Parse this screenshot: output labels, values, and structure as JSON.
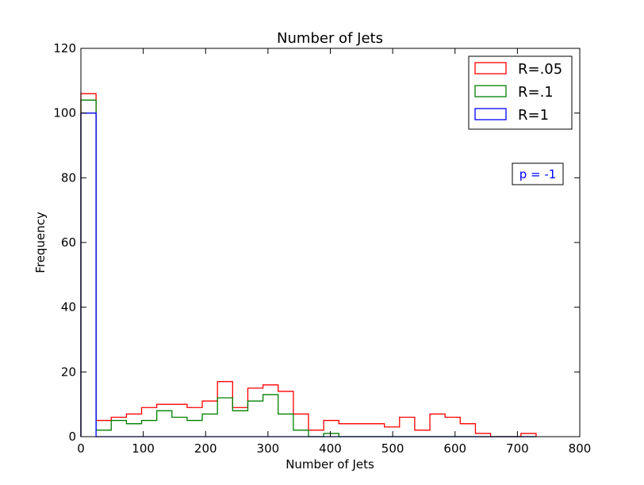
{
  "chart_data": {
    "type": "histogram",
    "title": "Number of Jets",
    "xlabel": "Number of Jets",
    "ylabel": "Frequency",
    "xlim": [
      0,
      800
    ],
    "ylim": [
      0,
      120
    ],
    "xticks": [
      "0",
      "100",
      "200",
      "300",
      "400",
      "500",
      "600",
      "700",
      "800"
    ],
    "yticks": [
      "0",
      "20",
      "40",
      "60",
      "80",
      "100",
      "120"
    ],
    "grid": false,
    "legend_position": "top-right",
    "annotation": {
      "text": "p = -1",
      "color": "#0000ff"
    },
    "bin_edges": [
      0,
      24.33,
      48.67,
      73,
      97.33,
      121.67,
      146,
      170.33,
      194.67,
      219,
      243.33,
      267.67,
      292,
      316.33,
      340.67,
      365,
      389.33,
      413.67,
      438,
      462.33,
      486.67,
      511,
      535.33,
      559.67,
      584,
      608.33,
      632.67,
      657,
      681.33,
      705.67,
      730
    ],
    "series": [
      {
        "name": "R=.05",
        "color": "#ff0000",
        "values": [
          106,
          5,
          6,
          7,
          9,
          10,
          10,
          9,
          11,
          17,
          9,
          15,
          16,
          14,
          7,
          2,
          5,
          4,
          4,
          4,
          3,
          6,
          2,
          7,
          6,
          4,
          1,
          0,
          0,
          1
        ]
      },
      {
        "name": "R=.1",
        "color": "#008000",
        "values": [
          104,
          2,
          5,
          4,
          5,
          8,
          6,
          5,
          7,
          12,
          8,
          11,
          13,
          7,
          2,
          0,
          1,
          0,
          0,
          0,
          0,
          0,
          0,
          0,
          0,
          0,
          0,
          0,
          0,
          0
        ]
      },
      {
        "name": "R=1",
        "color": "#0000ff",
        "values": [
          100,
          0,
          0,
          0,
          0,
          0,
          0,
          0,
          0,
          0,
          0,
          0,
          0,
          0,
          0,
          0,
          0,
          0,
          0,
          0,
          0,
          0,
          0,
          0,
          0,
          0,
          0,
          0,
          0,
          0
        ]
      }
    ]
  }
}
